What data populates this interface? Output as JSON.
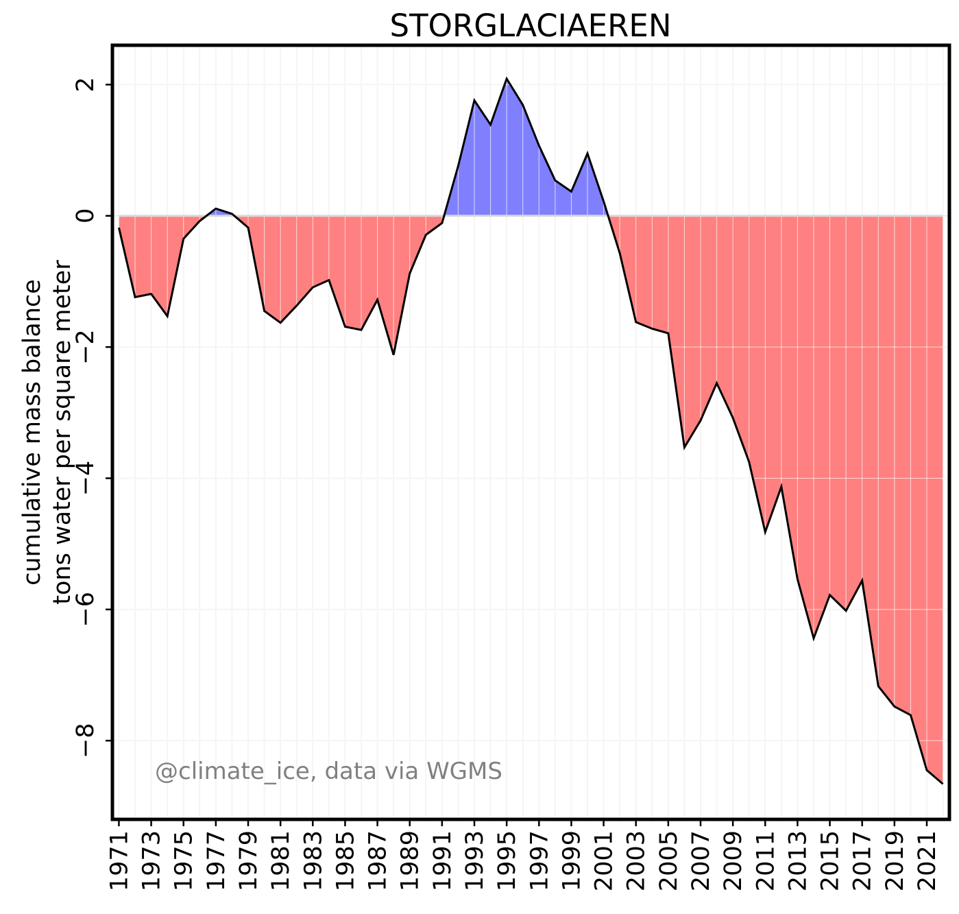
{
  "chart_data": {
    "type": "area",
    "title": "STORGLACIAEREN",
    "ylabel_lines": [
      "cumulative mass balance",
      "tons water per square meter"
    ],
    "xlabel": "",
    "annotation": "@climate_ice, data via WGMS",
    "x": [
      1971,
      1972,
      1973,
      1974,
      1975,
      1976,
      1977,
      1978,
      1979,
      1980,
      1981,
      1982,
      1983,
      1984,
      1985,
      1986,
      1987,
      1988,
      1989,
      1990,
      1991,
      1992,
      1993,
      1994,
      1995,
      1996,
      1997,
      1998,
      1999,
      2000,
      2001,
      2002,
      2003,
      2004,
      2005,
      2006,
      2007,
      2008,
      2009,
      2010,
      2011,
      2012,
      2013,
      2014,
      2015,
      2016,
      2017,
      2018,
      2019,
      2020,
      2021,
      2022
    ],
    "y": [
      -0.18,
      -1.24,
      -1.19,
      -1.53,
      -0.35,
      -0.08,
      0.11,
      0.03,
      -0.18,
      -1.45,
      -1.63,
      -1.37,
      -1.09,
      -0.98,
      -1.69,
      -1.74,
      -1.28,
      -2.12,
      -0.88,
      -0.29,
      -0.11,
      0.76,
      1.76,
      1.39,
      2.09,
      1.69,
      1.07,
      0.54,
      0.37,
      0.95,
      0.22,
      -0.57,
      -1.62,
      -1.72,
      -1.79,
      -3.53,
      -3.12,
      -2.55,
      -3.08,
      -3.75,
      -4.82,
      -4.13,
      -5.54,
      -6.44,
      -5.78,
      -6.02,
      -5.56,
      -7.17,
      -7.48,
      -7.61,
      -8.45,
      -8.66
    ],
    "positive_color": "#8080ff",
    "negative_color": "#ff8080",
    "line_color": "#000000",
    "xticks": [
      1971,
      1973,
      1975,
      1977,
      1979,
      1981,
      1983,
      1985,
      1987,
      1989,
      1991,
      1993,
      1995,
      1997,
      1999,
      2001,
      2003,
      2005,
      2007,
      2009,
      2011,
      2013,
      2015,
      2017,
      2019,
      2021
    ],
    "xtick_labels": [
      "1971",
      "1973",
      "1975",
      "1977",
      "1979",
      "1981",
      "1983",
      "1985",
      "1987",
      "1989",
      "1991",
      "1993",
      "1995",
      "1997",
      "1999",
      "2001",
      "2003",
      "2005",
      "2007",
      "2009",
      "2011",
      "2013",
      "2015",
      "2017",
      "2019",
      "2021"
    ],
    "yticks": [
      -8,
      -6,
      -4,
      -2,
      0,
      2
    ],
    "ytick_labels": [
      "−8",
      "−6",
      "−4",
      "−2",
      "0",
      "2"
    ],
    "xlim": [
      1970.6,
      2022.4
    ],
    "ylim": [
      -9.2,
      2.6
    ],
    "grid": true
  }
}
